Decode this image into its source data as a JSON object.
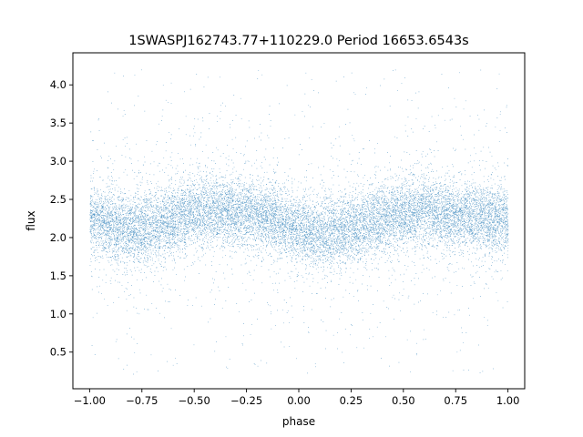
{
  "chart_data": {
    "type": "scatter",
    "title": "1SWASPJ162743.77+110229.0 Period 16653.6543s",
    "xlabel": "phase",
    "ylabel": "flux",
    "xlim": [
      -1.08,
      1.08
    ],
    "ylim": [
      0.02,
      4.42
    ],
    "xticks": [
      -1.0,
      -0.75,
      -0.5,
      -0.25,
      0.0,
      0.25,
      0.5,
      0.75,
      1.0
    ],
    "xtick_labels": [
      "−1.00",
      "−0.75",
      "−0.50",
      "−0.25",
      "0.00",
      "0.25",
      "0.50",
      "0.75",
      "1.00"
    ],
    "yticks": [
      0.5,
      1.0,
      1.5,
      2.0,
      2.5,
      3.0,
      3.5,
      4.0
    ],
    "ytick_labels": [
      "0.5",
      "1.0",
      "1.5",
      "2.0",
      "2.5",
      "3.0",
      "3.5",
      "4.0"
    ],
    "grid": false,
    "legend": "none",
    "series": [
      {
        "color": "#1f77b4",
        "marker": "point",
        "phase_range": [
          -1.0,
          1.0
        ],
        "profile": {
          "phase": [
            -1.0,
            -0.9,
            -0.8,
            -0.7,
            -0.6,
            -0.5,
            -0.4,
            -0.3,
            -0.2,
            -0.1,
            0.0,
            0.1,
            0.2,
            0.3,
            0.4,
            0.5,
            0.6,
            0.7,
            0.8,
            0.9,
            1.0
          ],
          "median_flux": [
            2.25,
            2.16,
            2.1,
            2.14,
            2.25,
            2.33,
            2.34,
            2.32,
            2.3,
            2.22,
            2.1,
            2.05,
            2.08,
            2.16,
            2.25,
            2.32,
            2.34,
            2.3,
            2.28,
            2.25,
            2.22
          ]
        },
        "core_spread": 0.22,
        "outlier_range": [
          0.2,
          4.2
        ],
        "approx_points": 60000
      }
    ]
  }
}
